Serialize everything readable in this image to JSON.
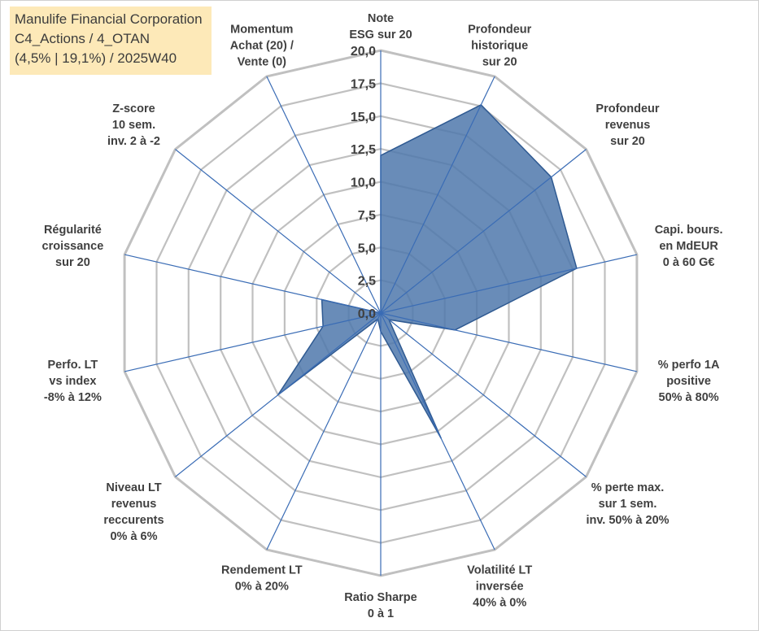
{
  "info": {
    "company": "Manulife Financial Corporation",
    "category": "C4_Actions / 4_OTAN",
    "params": "(4,5% | 19,1%) / 2025W40"
  },
  "colors": {
    "fill": "#4f78ab",
    "stroke": "#2f5a92",
    "grid": "#c0c0c0",
    "spoke": "#3a6cb5",
    "info_bg": "#fde9b8"
  },
  "chart_data": {
    "type": "radar",
    "axes": [
      [
        "Note",
        "ESG sur 20"
      ],
      [
        "Profondeur",
        "historique",
        "sur 20"
      ],
      [
        "Profondeur",
        "revenus",
        "sur 20"
      ],
      [
        "Capi. bours.",
        "en MdEUR",
        "0 à 60 G€"
      ],
      [
        "% perfo 1A",
        "positive",
        "50% à 80%"
      ],
      [
        "% perte max.",
        "sur 1 sem.",
        "inv. 50% à 20%"
      ],
      [
        "Volatilité LT",
        "inversée",
        "40% à 0%"
      ],
      [
        "Ratio Sharpe",
        "0 à 1"
      ],
      [
        "Rendement LT",
        "0% à 20%"
      ],
      [
        "Niveau LT",
        "revenus",
        "reccurents",
        "0% à 6%"
      ],
      [
        "Perfo. LT",
        "vs index",
        "-8% à 12%"
      ],
      [
        "Régularité",
        "croissance",
        "sur 20"
      ],
      [
        "Z-score",
        "10 sem.",
        "inv. 2 à -2"
      ],
      [
        "Momentum",
        "Achat (20) /",
        "Vente (0)"
      ]
    ],
    "values": [
      12.0,
      17.6,
      16.6,
      15.3,
      5.8,
      0.8,
      10.6,
      1.4,
      0.5,
      10.0,
      4.5,
      4.6,
      0.0,
      0.0
    ],
    "rmin": 0,
    "rmax": 20,
    "ticks": [
      "0,0",
      "2,5",
      "5,0",
      "7,5",
      "10,0",
      "12,5",
      "15,0",
      "17,5",
      "20,0"
    ],
    "tick_values": [
      0,
      2.5,
      5,
      7.5,
      10,
      12.5,
      15,
      17.5,
      20
    ]
  }
}
